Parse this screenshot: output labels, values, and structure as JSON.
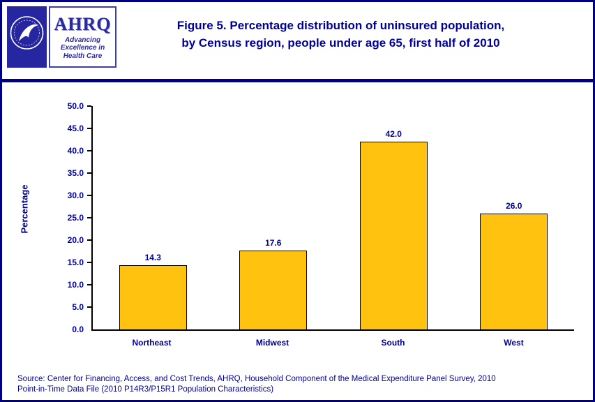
{
  "header": {
    "title_line1": "Figure 5. Percentage distribution of uninsured population,",
    "title_line2": "by Census region, people under age 65, first half of 2010",
    "ahrq": {
      "name": "AHRQ",
      "tagline_line1": "Advancing",
      "tagline_line2": "Excellence in",
      "tagline_line3": "Health Care"
    }
  },
  "chart_data": {
    "type": "bar",
    "categories": [
      "Northeast",
      "Midwest",
      "South",
      "West"
    ],
    "values": [
      14.3,
      17.6,
      42.0,
      26.0
    ],
    "value_labels": [
      "14.3",
      "17.6",
      "42.0",
      "26.0"
    ],
    "title": "Figure 5. Percentage distribution of uninsured population, by Census region, people under age 65, first half of 2010",
    "xlabel": "",
    "ylabel": "Percentage",
    "ylim": [
      0,
      50
    ],
    "ytick_step": 5,
    "grid": false,
    "legend": "none",
    "bar_color": "#FFC20E",
    "bar_border": "#000000"
  },
  "footer": {
    "source_line1": "Source: Center for Financing, Access, and Cost Trends, AHRQ, Household Component of the Medical Expenditure Panel Survey, 2010",
    "source_line2": "Point-in-Time Data File (2010 P14R3/P15R1 Population Characteristics)"
  },
  "colors": {
    "accent_navy": "#00009A",
    "page_border": "#000080",
    "bar": "#FFC20E",
    "hhs_blue": "#2626A0"
  }
}
